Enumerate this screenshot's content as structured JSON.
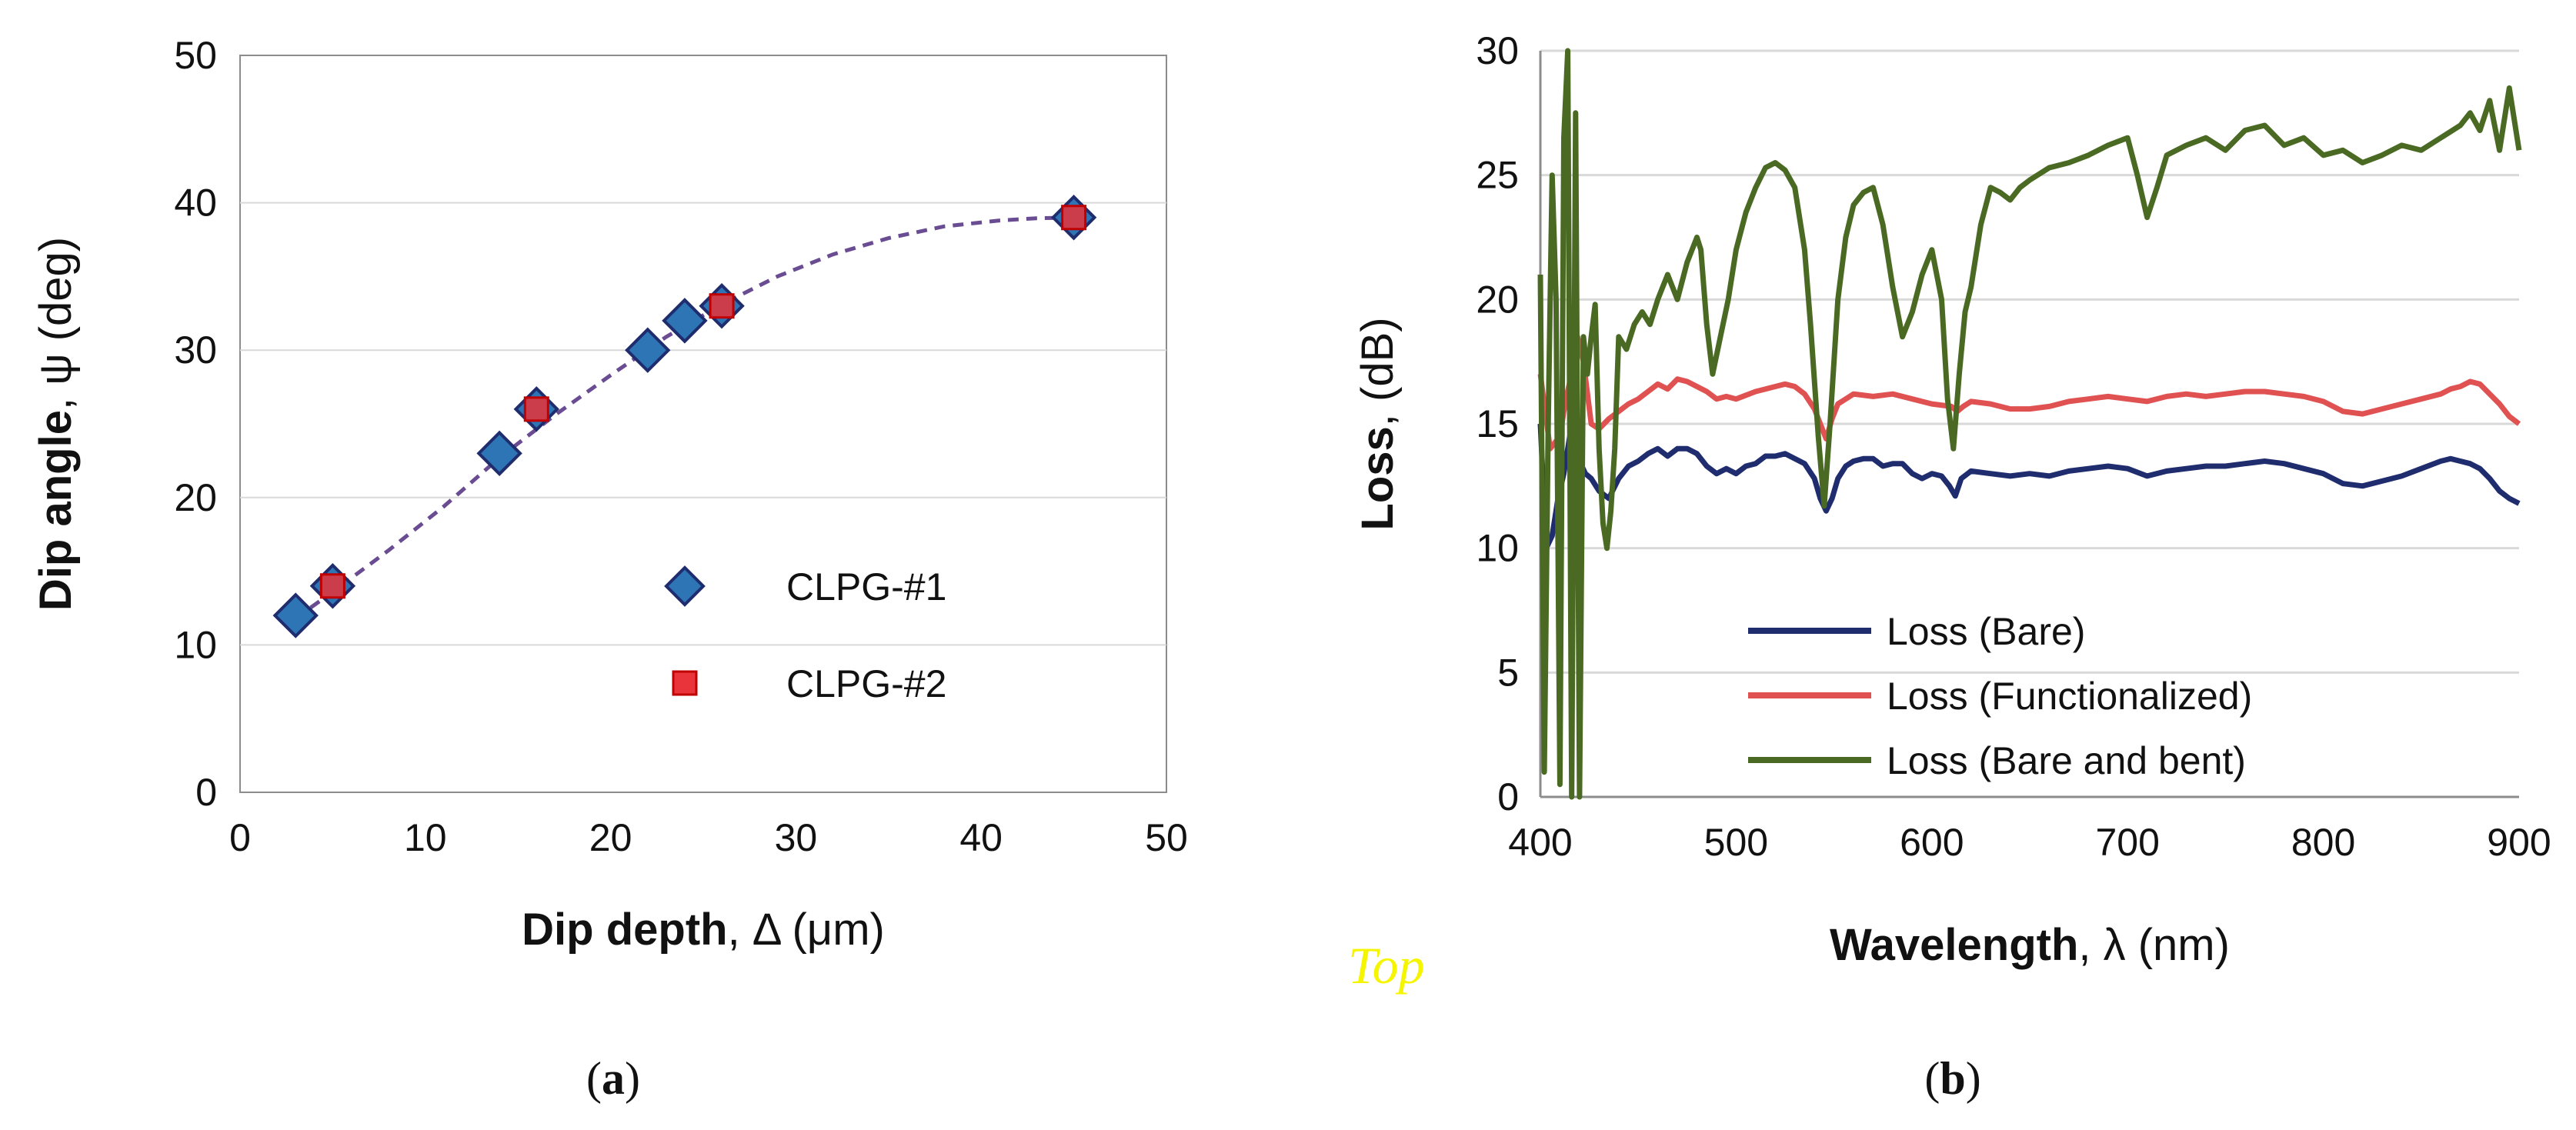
{
  "chart_data": [
    {
      "type": "scatter",
      "panel_label": {
        "open": "(",
        "letter": "a",
        "close": ")"
      },
      "xlabel": {
        "bold": "Dip depth",
        "rest": ", Δ (μm)"
      },
      "ylabel": {
        "bold": "Dip angle",
        "rest": ", ψ (deg)"
      },
      "xlim": [
        0,
        50
      ],
      "ylim": [
        0,
        50
      ],
      "xticks": [
        "0",
        "10",
        "20",
        "30",
        "40",
        "50"
      ],
      "yticks": [
        "0",
        "10",
        "20",
        "30",
        "40",
        "50"
      ],
      "grid": "horizontal",
      "legend_position": "bottom-right",
      "series": [
        {
          "name": "CLPG-#1",
          "marker": "diamond",
          "color": "#2e75b6",
          "edge_color": "#1f2d6e",
          "x": [
            3,
            5,
            14,
            16,
            22,
            24,
            26,
            45
          ],
          "y": [
            12,
            14,
            23,
            26,
            30,
            32,
            33,
            39
          ]
        },
        {
          "name": "CLPG-#2",
          "marker": "square",
          "color": "#e8343a",
          "edge_color": "#c00000",
          "x": [
            5,
            16,
            26,
            45
          ],
          "y": [
            14,
            26,
            33,
            39
          ]
        }
      ],
      "trendline": {
        "style": "dashed",
        "color": "#6a4c93",
        "x": [
          3,
          5,
          8,
          11,
          14,
          17,
          20,
          23,
          26,
          29,
          32,
          35,
          38,
          41,
          43,
          45
        ],
        "y": [
          11.8,
          13.6,
          16.4,
          19.4,
          22.7,
          25.6,
          28.3,
          30.9,
          33.1,
          35.0,
          36.5,
          37.6,
          38.4,
          38.8,
          38.95,
          39.0
        ]
      }
    },
    {
      "type": "line",
      "panel_label": {
        "open": "(",
        "letter": "b",
        "close": ")"
      },
      "xlabel": {
        "bold": "Wavelength",
        "rest": ", λ (nm)"
      },
      "ylabel": {
        "bold": "Loss",
        "rest": ", (dB)"
      },
      "xlim": [
        400,
        900
      ],
      "ylim": [
        0,
        30
      ],
      "xticks": [
        "400",
        "500",
        "600",
        "700",
        "800",
        "900"
      ],
      "yticks": [
        "0",
        "5",
        "10",
        "15",
        "20",
        "25",
        "30"
      ],
      "grid": "horizontal",
      "legend_position": "bottom-left",
      "series": [
        {
          "name": "Loss (Bare)",
          "color": "#1f2d6e",
          "x": [
            400,
            403,
            406,
            409,
            412,
            415,
            418,
            420,
            423,
            426,
            430,
            435,
            440,
            445,
            450,
            455,
            460,
            465,
            470,
            475,
            480,
            485,
            490,
            495,
            500,
            505,
            510,
            515,
            520,
            525,
            530,
            535,
            540,
            543,
            546,
            549,
            552,
            556,
            560,
            565,
            570,
            575,
            580,
            585,
            590,
            595,
            600,
            605,
            609,
            612,
            615,
            620,
            630,
            640,
            650,
            660,
            670,
            680,
            690,
            700,
            710,
            720,
            730,
            740,
            750,
            760,
            770,
            780,
            790,
            800,
            810,
            820,
            830,
            840,
            850,
            860,
            865,
            870,
            875,
            880,
            885,
            890,
            895,
            900
          ],
          "y": [
            15.0,
            10.0,
            10.5,
            12.0,
            13.0,
            14.5,
            14.8,
            13.5,
            13.0,
            12.8,
            12.3,
            12.0,
            12.8,
            13.3,
            13.5,
            13.8,
            14.0,
            13.7,
            14.0,
            14.0,
            13.8,
            13.3,
            13.0,
            13.2,
            13.0,
            13.3,
            13.4,
            13.7,
            13.7,
            13.8,
            13.6,
            13.4,
            12.8,
            12.0,
            11.5,
            12.0,
            12.8,
            13.3,
            13.5,
            13.6,
            13.6,
            13.3,
            13.4,
            13.4,
            13.0,
            12.8,
            13.0,
            12.9,
            12.5,
            12.1,
            12.8,
            13.1,
            13.0,
            12.9,
            13.0,
            12.9,
            13.1,
            13.2,
            13.3,
            13.2,
            12.9,
            13.1,
            13.2,
            13.3,
            13.3,
            13.4,
            13.5,
            13.4,
            13.2,
            13.0,
            12.6,
            12.5,
            12.7,
            12.9,
            13.2,
            13.5,
            13.6,
            13.5,
            13.4,
            13.2,
            12.8,
            12.3,
            12.0,
            11.8
          ]
        },
        {
          "name": "Loss (Functionalized)",
          "color": "#e05252",
          "x": [
            400,
            405,
            410,
            413,
            416,
            419,
            422,
            426,
            430,
            435,
            440,
            445,
            450,
            455,
            460,
            465,
            470,
            475,
            480,
            485,
            490,
            495,
            500,
            510,
            520,
            525,
            530,
            535,
            540,
            543,
            546,
            549,
            552,
            556,
            560,
            570,
            580,
            590,
            600,
            610,
            613,
            616,
            620,
            630,
            640,
            650,
            660,
            670,
            680,
            690,
            700,
            710,
            720,
            730,
            740,
            750,
            760,
            770,
            780,
            790,
            800,
            810,
            820,
            830,
            840,
            850,
            860,
            865,
            870,
            875,
            880,
            885,
            890,
            895,
            900
          ],
          "y": [
            17.0,
            14.0,
            14.5,
            16.0,
            17.0,
            18.5,
            17.5,
            15.0,
            14.8,
            15.2,
            15.5,
            15.8,
            16.0,
            16.3,
            16.6,
            16.4,
            16.8,
            16.7,
            16.5,
            16.3,
            16.0,
            16.1,
            16.0,
            16.3,
            16.5,
            16.6,
            16.5,
            16.2,
            15.6,
            15.0,
            14.4,
            15.2,
            15.8,
            16.0,
            16.2,
            16.1,
            16.2,
            16.0,
            15.8,
            15.7,
            15.5,
            15.7,
            15.9,
            15.8,
            15.6,
            15.6,
            15.7,
            15.9,
            16.0,
            16.1,
            16.0,
            15.9,
            16.1,
            16.2,
            16.1,
            16.2,
            16.3,
            16.3,
            16.2,
            16.1,
            15.9,
            15.5,
            15.4,
            15.6,
            15.8,
            16.0,
            16.2,
            16.4,
            16.5,
            16.7,
            16.6,
            16.2,
            15.8,
            15.3,
            15.0
          ]
        },
        {
          "name": "Loss (Bare and bent)",
          "color": "#4a6a24",
          "x": [
            400,
            402,
            404,
            406,
            408,
            410,
            412,
            414,
            416,
            418,
            420,
            422,
            424,
            426,
            428,
            430,
            432,
            434,
            436,
            438,
            440,
            444,
            448,
            452,
            456,
            460,
            465,
            470,
            475,
            480,
            482,
            485,
            488,
            492,
            496,
            500,
            505,
            510,
            515,
            520,
            525,
            530,
            535,
            538,
            542,
            545,
            548,
            552,
            556,
            560,
            565,
            570,
            575,
            580,
            585,
            590,
            595,
            600,
            605,
            608,
            611,
            614,
            617,
            620,
            625,
            630,
            635,
            640,
            645,
            650,
            660,
            670,
            680,
            690,
            700,
            705,
            710,
            715,
            720,
            730,
            740,
            750,
            760,
            770,
            780,
            790,
            800,
            810,
            820,
            830,
            840,
            850,
            860,
            870,
            875,
            880,
            885,
            890,
            895,
            900
          ],
          "y": [
            21.0,
            1.0,
            15.0,
            25.0,
            20.0,
            0.5,
            26.5,
            30.0,
            0.0,
            27.5,
            0.0,
            18.5,
            17.0,
            18.5,
            19.8,
            14.0,
            11.0,
            10.0,
            11.5,
            14.0,
            18.5,
            18.0,
            19.0,
            19.5,
            19.0,
            20.0,
            21.0,
            20.0,
            21.5,
            22.5,
            22.0,
            19.0,
            17.0,
            18.5,
            20.0,
            22.0,
            23.5,
            24.5,
            25.3,
            25.5,
            25.2,
            24.5,
            22.0,
            19.0,
            14.5,
            11.7,
            15.0,
            20.0,
            22.5,
            23.8,
            24.3,
            24.5,
            23.0,
            20.5,
            18.5,
            19.5,
            21.0,
            22.0,
            20.0,
            16.0,
            14.0,
            17.0,
            19.5,
            20.5,
            23.0,
            24.5,
            24.3,
            24.0,
            24.5,
            24.8,
            25.3,
            25.5,
            25.8,
            26.2,
            26.5,
            25.0,
            23.3,
            24.5,
            25.8,
            26.2,
            26.5,
            26.0,
            26.8,
            27.0,
            26.2,
            26.5,
            25.8,
            26.0,
            25.5,
            25.8,
            26.2,
            26.0,
            26.5,
            27.0,
            27.5,
            26.8,
            28.0,
            26.0,
            28.5,
            26.0
          ]
        }
      ]
    }
  ],
  "watermark": {
    "text": "Top",
    "color": "#f5f500"
  }
}
